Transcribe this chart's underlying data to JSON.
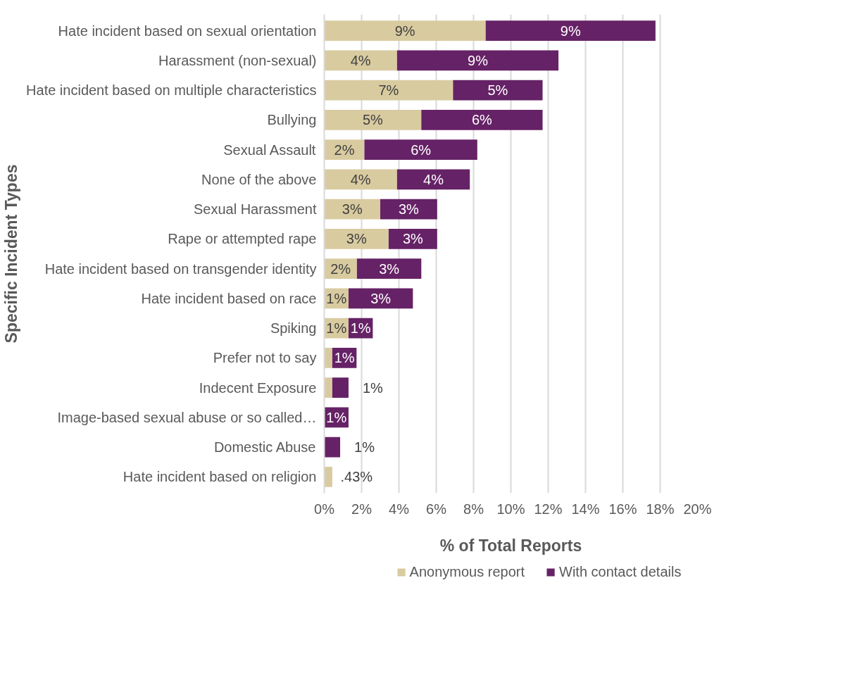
{
  "chart_data": {
    "type": "bar",
    "orientation": "horizontal",
    "stacked": true,
    "xlabel": "% of Total Reports",
    "ylabel": "Specific Incident Types",
    "categories": [
      "Hate incident based on sexual orientation",
      "Harassment (non-sexual)",
      "Hate incident based on multiple characteristics",
      "Bullying",
      "Sexual Assault",
      "None of the above",
      "Sexual Harassment",
      "Rape or attempted rape",
      "Hate incident based on transgender identity",
      "Hate incident based on race",
      "Spiking",
      "Prefer not to say",
      "Indecent Exposure",
      "Image-based sexual abuse or so called…",
      "Domestic Abuse",
      "Hate incident based on religion"
    ],
    "series": [
      {
        "name": "Anonymous report",
        "color": "#d9cba0",
        "values": [
          8.65,
          3.9,
          6.9,
          5.2,
          2.15,
          3.9,
          3.0,
          3.45,
          1.75,
          1.3,
          1.3,
          0.43,
          0.43,
          0,
          0,
          0.43
        ],
        "value_labels": [
          "9%",
          "4%",
          "7%",
          "5%",
          "2%",
          "4%",
          "3%",
          "3%",
          "2%",
          "1%",
          "1%",
          null,
          null,
          null,
          null,
          ".43%"
        ]
      },
      {
        "name": "With contact details",
        "color": "#662266",
        "values": [
          9.1,
          8.65,
          4.8,
          6.5,
          6.05,
          3.9,
          3.05,
          2.6,
          3.45,
          3.45,
          1.3,
          1.3,
          0.87,
          1.3,
          0.85,
          0
        ],
        "value_labels": [
          "9%",
          "9%",
          "5%",
          "6%",
          "6%",
          "4%",
          "3%",
          "3%",
          "3%",
          "3%",
          "1%",
          "1%",
          "1%",
          "1%",
          "1%",
          null
        ]
      }
    ],
    "xlim": [
      0,
      20
    ],
    "xticks": [
      {
        "value": 0,
        "label": "0%"
      },
      {
        "value": 2,
        "label": "2%"
      },
      {
        "value": 4,
        "label": "4%"
      },
      {
        "value": 6,
        "label": "6%"
      },
      {
        "value": 8,
        "label": "8%"
      },
      {
        "value": 10,
        "label": "10%"
      },
      {
        "value": 12,
        "label": "12%"
      },
      {
        "value": 14,
        "label": "14%"
      },
      {
        "value": 16,
        "label": "16%"
      },
      {
        "value": 18,
        "label": "18%"
      },
      {
        "value": 20,
        "label": "20%"
      }
    ],
    "grid": "x",
    "legend": "bottom"
  }
}
